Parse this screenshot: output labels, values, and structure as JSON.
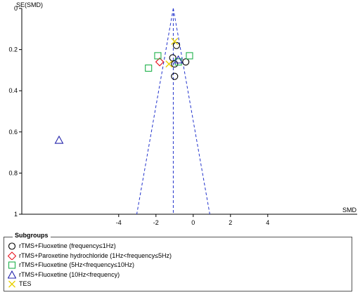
{
  "chart_data": {
    "type": "scatter",
    "subtype": "funnel-plot",
    "title": "",
    "xlabel": "SMD",
    "ylabel": "SE(SMD)",
    "xlim": [
      -9.2,
      8.8
    ],
    "ylim": [
      0,
      1
    ],
    "y_inverted": true,
    "x_ticks": [
      "-4",
      "-2",
      "0",
      "2",
      "4"
    ],
    "y_ticks": [
      "0",
      "0.2",
      "0.4",
      "0.6",
      "0.8",
      "1"
    ],
    "pooled_estimate": -1.07,
    "grid": false,
    "legend_position": "bottom",
    "legend_title": "Subgroups",
    "series": [
      {
        "name": "rTMS+Fluoxetine (frequency≤1Hz)",
        "marker": "circle",
        "color": "#000000",
        "points": [
          {
            "x": -0.9,
            "y": 0.18
          },
          {
            "x": -1.1,
            "y": 0.24
          },
          {
            "x": -1.0,
            "y": 0.27
          },
          {
            "x": -0.4,
            "y": 0.26
          },
          {
            "x": -1.0,
            "y": 0.33
          }
        ]
      },
      {
        "name": "rTMS+Paroxetine hydrochloride (1Hz<frequency≤5Hz)",
        "marker": "diamond",
        "color": "#e8101c",
        "points": [
          {
            "x": -1.8,
            "y": 0.26
          }
        ]
      },
      {
        "name": "rTMS+Fluoxetine (5Hz<frequency≤10Hz)",
        "marker": "square",
        "color": "#1eb14a",
        "points": [
          {
            "x": -1.9,
            "y": 0.23
          },
          {
            "x": -0.2,
            "y": 0.23
          },
          {
            "x": -2.4,
            "y": 0.29
          },
          {
            "x": -0.8,
            "y": 0.26
          }
        ]
      },
      {
        "name": "rTMS+Fluoxetine (10Hz<frequency)",
        "marker": "triangle",
        "color": "#2222aa",
        "points": [
          {
            "x": -7.2,
            "y": 0.64
          },
          {
            "x": -0.8,
            "y": 0.25
          }
        ]
      },
      {
        "name": "TES",
        "marker": "x",
        "color": "#e8d000",
        "points": [
          {
            "x": -1.0,
            "y": 0.16
          },
          {
            "x": -1.3,
            "y": 0.27
          }
        ]
      }
    ]
  }
}
